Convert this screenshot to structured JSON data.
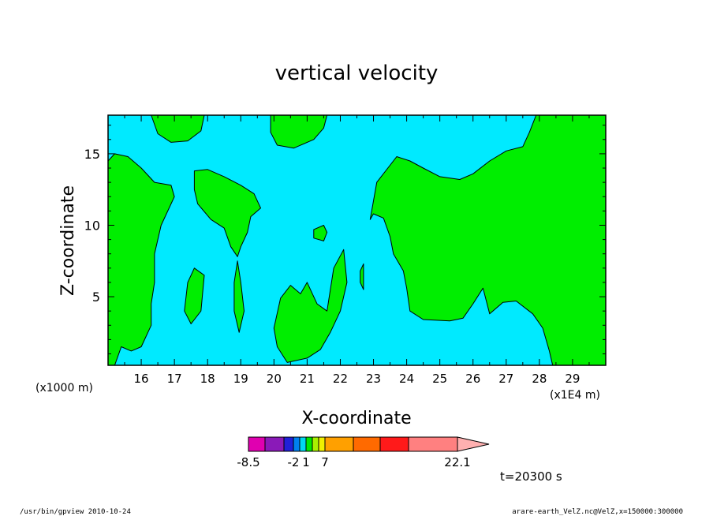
{
  "chart_data": {
    "type": "heatmap",
    "title": "vertical velocity",
    "xlabel": "X-coordinate",
    "ylabel": "Z-coordinate",
    "x_unit_left": "(x1000 m)",
    "x_unit_right": "(x1E4 m)",
    "x_ticks": [
      "16",
      "17",
      "18",
      "19",
      "20",
      "21",
      "22",
      "23",
      "24",
      "25",
      "26",
      "27",
      "28",
      "29"
    ],
    "x_tick_values": [
      16,
      17,
      18,
      19,
      20,
      21,
      22,
      23,
      24,
      25,
      26,
      27,
      28,
      29
    ],
    "xlim": [
      15.0,
      30.0
    ],
    "y_ticks": [
      "5",
      "10",
      "15"
    ],
    "y_tick_values": [
      5,
      10,
      15
    ],
    "ylim": [
      0.2,
      17.7
    ],
    "time_label": "t=20300 s",
    "footer_left": "/usr/bin/gpview   2010-10-24",
    "footer_right": "arare-earth_VelZ.nc@VelZ,x=150000:300000",
    "colorbar": {
      "colors": [
        "#e000b0",
        "#8a1ab8",
        "#2020d8",
        "#0080f0",
        "#00d8f0",
        "#00e800",
        "#a8f000",
        "#f0f000",
        "#ffa000",
        "#ff6a00",
        "#ff1a1a",
        "#ff8080",
        "#ffb0b0"
      ],
      "tick_labels": [
        "-8.5",
        "-2",
        "1",
        "7",
        "22.1"
      ],
      "tick_index": [
        0,
        3,
        5,
        8,
        12
      ]
    },
    "background_color": "#00eaff",
    "fill_color": "#00ee00",
    "regions": [
      {
        "name": "left-column",
        "points": [
          [
            15,
            14.5
          ],
          [
            15.2,
            15
          ],
          [
            15.6,
            14.8
          ],
          [
            16,
            14
          ],
          [
            16.4,
            13
          ],
          [
            16.9,
            12.8
          ],
          [
            17,
            12
          ],
          [
            16.6,
            10
          ],
          [
            16.4,
            8
          ],
          [
            16.4,
            6
          ],
          [
            16.3,
            4.5
          ],
          [
            16.3,
            3
          ],
          [
            16,
            1.5
          ],
          [
            15.7,
            1.2
          ],
          [
            15.4,
            1.5
          ],
          [
            15.2,
            0.2
          ],
          [
            15,
            0.2
          ]
        ]
      },
      {
        "name": "top-left-blob",
        "points": [
          [
            16.3,
            17.7
          ],
          [
            17.9,
            17.7
          ],
          [
            17.8,
            16.6
          ],
          [
            17.4,
            15.9
          ],
          [
            16.9,
            15.8
          ],
          [
            16.5,
            16.4
          ]
        ]
      },
      {
        "name": "top-center-blob",
        "points": [
          [
            19.9,
            17.7
          ],
          [
            21.6,
            17.7
          ],
          [
            21.5,
            16.8
          ],
          [
            21.2,
            16.0
          ],
          [
            20.6,
            15.4
          ],
          [
            20.1,
            15.6
          ],
          [
            19.9,
            16.5
          ]
        ]
      },
      {
        "name": "mid-left-blob",
        "points": [
          [
            17.6,
            13.8
          ],
          [
            18,
            13.9
          ],
          [
            18.5,
            13.4
          ],
          [
            19,
            12.8
          ],
          [
            19.4,
            12.2
          ],
          [
            19.6,
            11.2
          ],
          [
            19.3,
            10.6
          ],
          [
            19.2,
            9.5
          ],
          [
            19,
            8.5
          ],
          [
            18.9,
            7.8
          ],
          [
            18.7,
            8.5
          ],
          [
            18.5,
            9.8
          ],
          [
            18.1,
            10.4
          ],
          [
            17.7,
            11.5
          ],
          [
            17.6,
            12.5
          ]
        ]
      },
      {
        "name": "small-blob-a",
        "points": [
          [
            17.4,
            6
          ],
          [
            17.6,
            7
          ],
          [
            17.9,
            6.5
          ],
          [
            17.8,
            4
          ],
          [
            17.5,
            3.1
          ],
          [
            17.3,
            4
          ]
        ]
      },
      {
        "name": "narrow-streak",
        "points": [
          [
            18.8,
            6
          ],
          [
            18.9,
            7.5
          ],
          [
            19.0,
            6.0
          ],
          [
            19.1,
            4
          ],
          [
            18.95,
            2.5
          ],
          [
            18.8,
            4
          ]
        ]
      },
      {
        "name": "center-blobs",
        "points": [
          [
            20,
            2.8
          ],
          [
            20.2,
            4.9
          ],
          [
            20.5,
            5.8
          ],
          [
            20.8,
            5.2
          ],
          [
            21,
            6
          ],
          [
            21.2,
            5
          ],
          [
            21.3,
            4.5
          ],
          [
            21.6,
            4
          ],
          [
            21.8,
            7
          ],
          [
            22.1,
            8.3
          ],
          [
            22.2,
            6.0
          ],
          [
            22,
            4
          ],
          [
            21.7,
            2.5
          ],
          [
            21.4,
            1.3
          ],
          [
            21.0,
            0.7
          ],
          [
            20.4,
            0.4
          ],
          [
            20.1,
            1.5
          ]
        ]
      },
      {
        "name": "small-blob-b",
        "points": [
          [
            21.2,
            9.7
          ],
          [
            21.5,
            10
          ],
          [
            21.6,
            9.5
          ],
          [
            21.5,
            8.9
          ],
          [
            21.2,
            9.1
          ]
        ]
      },
      {
        "name": "small-blob-c",
        "points": [
          [
            22.6,
            6.8
          ],
          [
            22.7,
            7.3
          ],
          [
            22.7,
            5.5
          ],
          [
            22.6,
            6
          ]
        ]
      },
      {
        "name": "right-mass",
        "points": [
          [
            22.9,
            10.4
          ],
          [
            23.1,
            13
          ],
          [
            23.7,
            14.8
          ],
          [
            24.1,
            14.5
          ],
          [
            24.5,
            14
          ],
          [
            25,
            13.4
          ],
          [
            25.6,
            13.2
          ],
          [
            26.0,
            13.6
          ],
          [
            26.5,
            14.5
          ],
          [
            27,
            15.2
          ],
          [
            27.5,
            15.5
          ],
          [
            27.7,
            16.5
          ],
          [
            27.9,
            17.7
          ],
          [
            30,
            17.7
          ],
          [
            30,
            0.2
          ],
          [
            28.4,
            0.2
          ],
          [
            28.3,
            1.2
          ],
          [
            28.1,
            2.8
          ],
          [
            27.8,
            3.8
          ],
          [
            27.3,
            4.7
          ],
          [
            26.9,
            4.6
          ],
          [
            26.5,
            3.8
          ],
          [
            26.3,
            5.6
          ],
          [
            26,
            4.5
          ],
          [
            25.7,
            3.5
          ],
          [
            25.3,
            3.3
          ],
          [
            24.5,
            3.4
          ],
          [
            24.1,
            4
          ],
          [
            24,
            5.6
          ],
          [
            23.9,
            6.8
          ],
          [
            23.6,
            8.0
          ],
          [
            23.5,
            9.2
          ],
          [
            23.3,
            10.5
          ],
          [
            23.0,
            10.8
          ]
        ]
      }
    ]
  }
}
